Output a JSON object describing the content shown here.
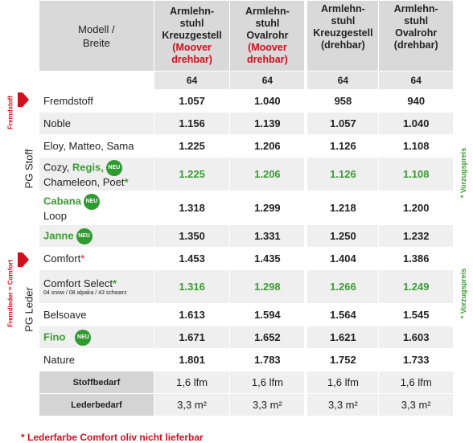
{
  "header": {
    "corner": [
      "Modell /",
      "Breite"
    ],
    "columns": [
      {
        "lines": [
          "Armlehn-",
          "stuhl",
          "Kreuzgestell"
        ],
        "note": [
          "(Moover",
          "drehbar)"
        ]
      },
      {
        "lines": [
          "Armlehn-",
          "stuhl",
          "Ovalrohr"
        ],
        "note": [
          "(Moover",
          "drehbar)"
        ]
      },
      {
        "lines": [
          "Armlehn-",
          "stuhl",
          "Kreuzgestell",
          "(drehbar)"
        ]
      },
      {
        "lines": [
          "Armlehn-",
          "stuhl",
          "Ovalrohr",
          "(drehbar)"
        ]
      }
    ],
    "widths": [
      "64",
      "64",
      "64",
      "64"
    ]
  },
  "groups": [
    {
      "label": "PG Stoff",
      "tag": "Fremdstoff",
      "price_note": "* Vorzugspreis"
    },
    {
      "label": "PG Leder",
      "tag": "Fremdleder = Comfort",
      "price_note": "* Vorzugspreis"
    }
  ],
  "rows": [
    {
      "name": [
        "Fremdstoff"
      ],
      "values": [
        "1.057",
        "1.040",
        "958",
        "940"
      ]
    },
    {
      "name": [
        "Noble"
      ],
      "values": [
        "1.156",
        "1.139",
        "1.057",
        "1.040"
      ]
    },
    {
      "name": [
        "Eloy, Matteo, Sama"
      ],
      "values": [
        "1.225",
        "1.206",
        "1.126",
        "1.108"
      ]
    },
    {
      "name": [
        "Cozy,",
        "Regis,",
        "Chameleon, Poet",
        "*"
      ],
      "badge": "NEU",
      "values": [
        "1.225",
        "1.206",
        "1.126",
        "1.108"
      ]
    },
    {
      "name": [
        "Cabana",
        "Loop"
      ],
      "badge": "NEU",
      "values": [
        "1.318",
        "1.299",
        "1.218",
        "1.200"
      ]
    },
    {
      "name": [
        "Janne"
      ],
      "badge": "NEU",
      "values": [
        "1.350",
        "1.331",
        "1.250",
        "1.232"
      ]
    },
    {
      "name": [
        "Comfort",
        "*"
      ],
      "values": [
        "1.453",
        "1.435",
        "1.404",
        "1.386"
      ]
    },
    {
      "name": [
        "Comfort Select",
        "*",
        "04 snow / 08 alpaka / 43 schwarz"
      ],
      "values": [
        "1.316",
        "1.298",
        "1.266",
        "1.249"
      ]
    },
    {
      "name": [
        "Belsoave"
      ],
      "values": [
        "1.613",
        "1.594",
        "1.564",
        "1.545"
      ]
    },
    {
      "name": [
        "Fino"
      ],
      "badge": "NEU",
      "values": [
        "1.671",
        "1.652",
        "1.621",
        "1.603"
      ]
    },
    {
      "name": [
        "Nature"
      ],
      "values": [
        "1.801",
        "1.783",
        "1.752",
        "1.733"
      ]
    }
  ],
  "footer_rows": [
    {
      "label": "Stoffbedarf",
      "values": [
        "1,6 lfm",
        "1,6 lfm",
        "1,6 lfm",
        "1,6 lfm"
      ]
    },
    {
      "label": "Lederbedarf",
      "values": [
        "3,3 m²",
        "3,3 m²",
        "3,3 m²",
        "3,3 m²"
      ]
    }
  ],
  "footnote": "* Lederfarbe Comfort oliv nicht lieferbar"
}
